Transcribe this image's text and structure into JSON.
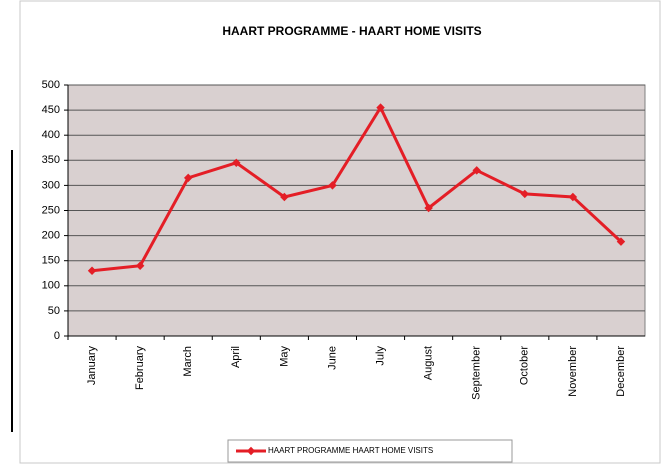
{
  "chart_data": {
    "type": "line",
    "title": "HAART PROGRAMME - HAART HOME VISITS",
    "categories": [
      "January",
      "February",
      "March",
      "April",
      "May",
      "June",
      "July",
      "August",
      "September",
      "October",
      "November",
      "December"
    ],
    "series": [
      {
        "name": "HAART PROGRAMME HAART HOME VISITS",
        "color": "#e41e26",
        "values": [
          130,
          140,
          315,
          345,
          277,
          300,
          455,
          255,
          330,
          283,
          277,
          188
        ]
      }
    ],
    "ylim": [
      0,
      500
    ],
    "yticks": [
      0,
      50,
      100,
      150,
      200,
      250,
      300,
      350,
      400,
      450,
      500
    ],
    "grid": true,
    "legend": "bottom"
  }
}
